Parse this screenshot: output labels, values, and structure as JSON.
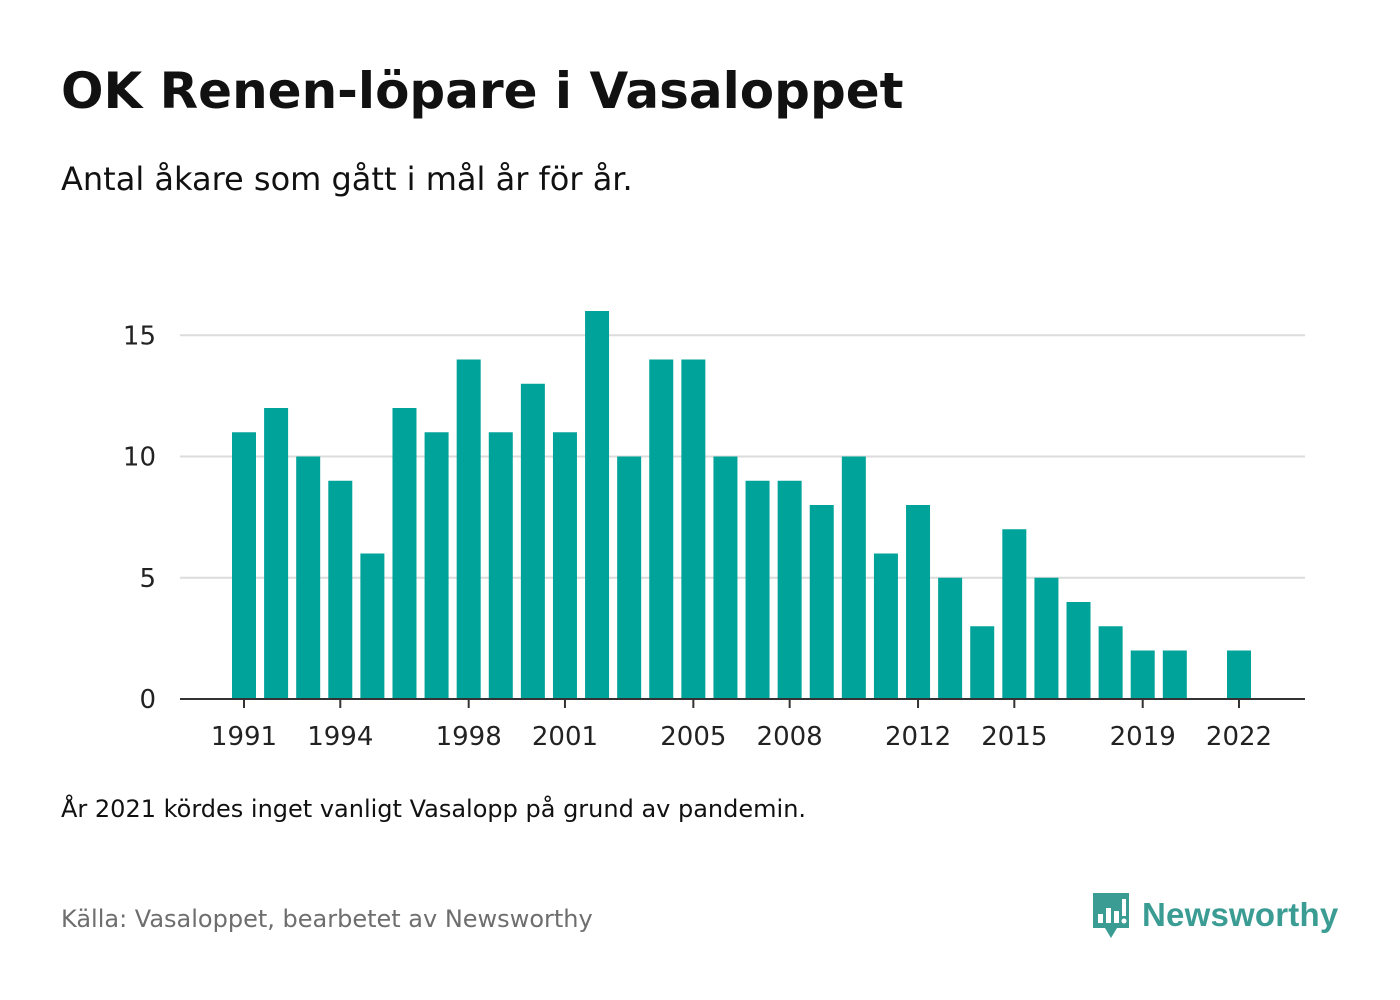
{
  "header": {
    "title": "OK Renen-löpare i Vasaloppet",
    "subtitle": "Antal åkare som gått i mål år för år."
  },
  "footer": {
    "note": "År 2021 kördes inget vanligt Vasalopp på grund av pandemin.",
    "source": "Källa: Vasaloppet, bearbetet av Newsworthy",
    "brand": "Newsworthy",
    "brand_icon": "newsworthy-chart-bubble-icon"
  },
  "colors": {
    "bar": "#00a39a",
    "brand": "#3b9c94",
    "grid": "#dcdcdc",
    "axis": "#333333"
  },
  "chart_data": {
    "type": "bar",
    "title": "OK Renen-löpare i Vasaloppet",
    "subtitle": "Antal åkare som gått i mål år för år.",
    "xlabel": "",
    "ylabel": "",
    "x": [
      1991,
      1992,
      1993,
      1994,
      1995,
      1996,
      1997,
      1998,
      1999,
      2000,
      2001,
      2002,
      2003,
      2004,
      2005,
      2006,
      2007,
      2008,
      2009,
      2010,
      2011,
      2012,
      2013,
      2014,
      2015,
      2016,
      2017,
      2018,
      2019,
      2020,
      2021,
      2022
    ],
    "values": [
      11,
      12,
      10,
      9,
      6,
      12,
      11,
      14,
      11,
      13,
      11,
      16,
      10,
      14,
      14,
      10,
      9,
      9,
      8,
      10,
      6,
      8,
      5,
      3,
      7,
      5,
      4,
      3,
      2,
      2,
      null,
      2
    ],
    "ylim": [
      0,
      16
    ],
    "yticks": [
      0,
      5,
      10,
      15
    ],
    "xticks": [
      1991,
      1994,
      1998,
      2001,
      2005,
      2008,
      2012,
      2015,
      2019,
      2022
    ],
    "grid": true,
    "legend": "none"
  }
}
